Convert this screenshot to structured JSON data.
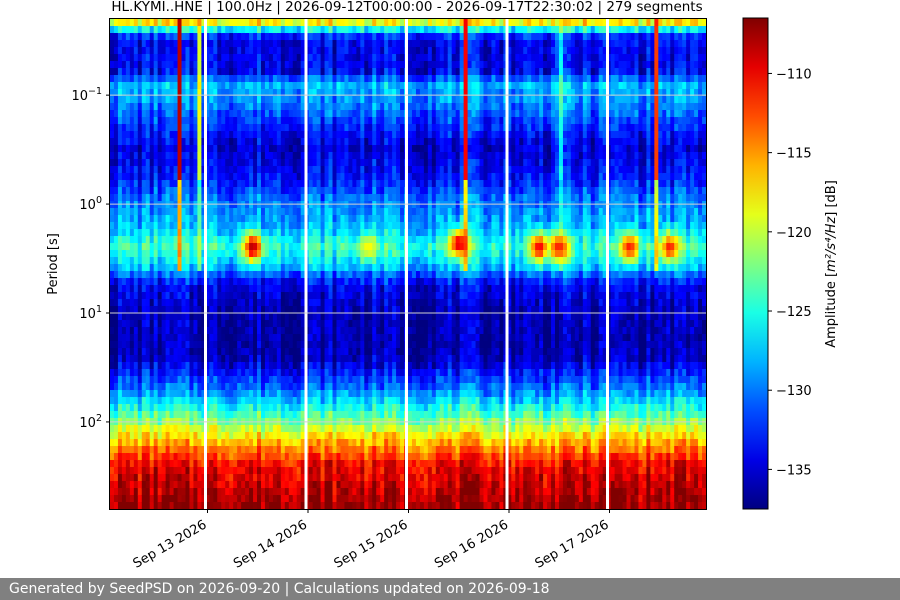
{
  "chart_data": {
    "type": "heatmap",
    "title": "HL.KYMI..HNE | 100.0Hz | 2026-09-12T00:00:00 - 2026-09-17T22:30:02 | 279 segments",
    "ylabel": "Period [s]",
    "colorbar_label_prefix": "Amplitude [",
    "colorbar_label_unit": "m²/s⁴/Hz",
    "colorbar_label_suffix": "] [dB]",
    "x_ticks": [
      "Sep 13 2026",
      "Sep 14 2026",
      "Sep 15 2026",
      "Sep 16 2026",
      "Sep 17 2026"
    ],
    "x_tick_day_offsets": [
      1,
      2,
      3,
      4,
      5
    ],
    "x_range_days": [
      0.03,
      5.96
    ],
    "y_scale": "log",
    "y_inverted": true,
    "y_ticks": [
      {
        "value": 0.1,
        "base": "10",
        "exp": "−1"
      },
      {
        "value": 1,
        "base": "10",
        "exp": "0"
      },
      {
        "value": 10,
        "base": "10",
        "exp": "1"
      },
      {
        "value": 100,
        "base": "10",
        "exp": "2"
      }
    ],
    "y_range": [
      0.02,
      630
    ],
    "colorbar_range": [
      -137.5,
      -106.5
    ],
    "colorbar_ticks": [
      -110,
      -115,
      -120,
      -125,
      -130,
      -135
    ],
    "colormap": "jet",
    "grid": true,
    "gaps_days": [
      0.98,
      1.98,
      2.98,
      3.98,
      4.98
    ],
    "spectral_profile_dB": [
      {
        "period": 0.02,
        "dB": -114
      },
      {
        "period": 0.025,
        "dB": -126
      },
      {
        "period": 0.03,
        "dB": -134
      },
      {
        "period": 0.06,
        "dB": -134
      },
      {
        "period": 0.08,
        "dB": -128
      },
      {
        "period": 0.13,
        "dB": -130
      },
      {
        "period": 0.3,
        "dB": -135
      },
      {
        "period": 0.6,
        "dB": -133
      },
      {
        "period": 0.9,
        "dB": -130
      },
      {
        "period": 1.6,
        "dB": -128
      },
      {
        "period": 2.5,
        "dB": -124
      },
      {
        "period": 3.8,
        "dB": -128
      },
      {
        "period": 5.5,
        "dB": -134
      },
      {
        "period": 10,
        "dB": -136
      },
      {
        "period": 25,
        "dB": -136
      },
      {
        "period": 50,
        "dB": -130
      },
      {
        "period": 90,
        "dB": -123
      },
      {
        "period": 150,
        "dB": -116
      },
      {
        "period": 250,
        "dB": -110
      },
      {
        "period": 630,
        "dB": -107
      }
    ],
    "microseism_events": [
      {
        "day": 1.45,
        "period": 2.5,
        "dB": -108
      },
      {
        "day": 2.6,
        "period": 2.5,
        "dB": -118
      },
      {
        "day": 3.5,
        "period": 2.3,
        "dB": -109
      },
      {
        "day": 4.3,
        "period": 2.5,
        "dB": -110
      },
      {
        "day": 4.5,
        "period": 2.5,
        "dB": -110
      },
      {
        "day": 5.2,
        "period": 2.5,
        "dB": -111
      },
      {
        "day": 5.6,
        "period": 2.5,
        "dB": -111
      }
    ],
    "transient_columns": [
      {
        "day": 0.72,
        "dB": -108
      },
      {
        "day": 3.57,
        "dB": -110
      },
      {
        "day": 5.47,
        "dB": -111
      },
      {
        "day": 4.5,
        "dB": -115
      },
      {
        "day": 0.93,
        "dB": -113
      }
    ]
  },
  "footer": {
    "text": "Generated by SeedPSD on 2026-09-20 | Calculations updated on 2026-09-18"
  }
}
